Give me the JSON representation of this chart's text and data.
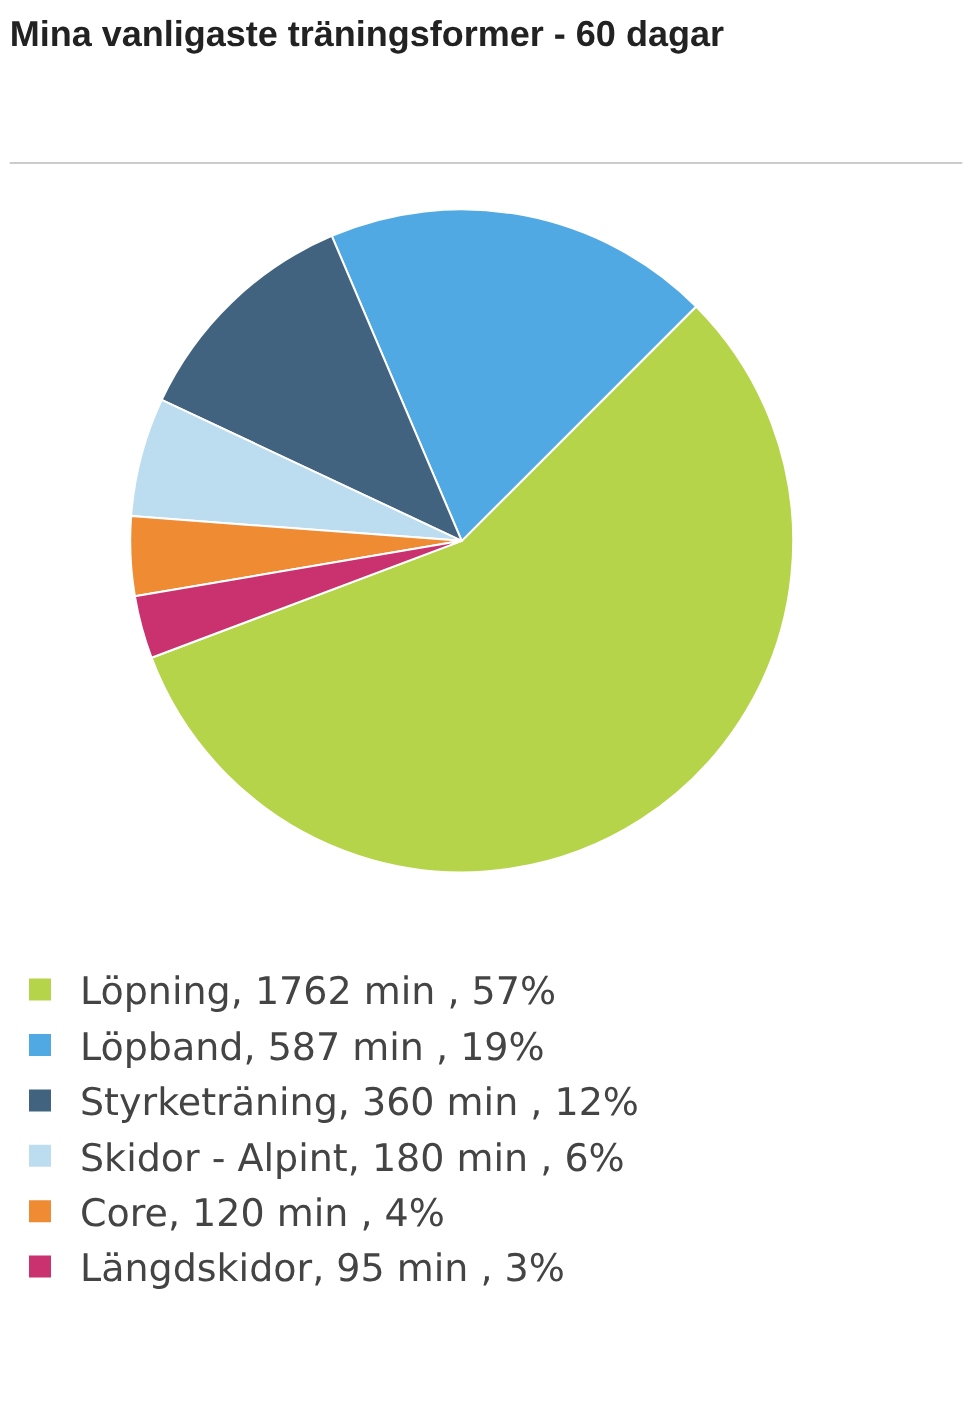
{
  "chart_data": {
    "type": "pie",
    "title": "Mina vanligaste träningsformer - 60 dagar",
    "categories": [
      "Löpning, 1762 min , 57%",
      "Löpband, 587 min , 19%",
      "Styrketräning, 360 min , 12%",
      "Skidor - Alpint, 180 min , 6%",
      "Core, 120 min , 4%",
      "Längdskidor, 95 min , 3%"
    ],
    "values": [
      1762,
      587,
      360,
      180,
      120,
      95
    ],
    "colors": [
      "#b5d44a",
      "#50a9e2",
      "#41637f",
      "#bcdcf0",
      "#ef8b33",
      "#c9316f"
    ],
    "legend": "bottom"
  }
}
